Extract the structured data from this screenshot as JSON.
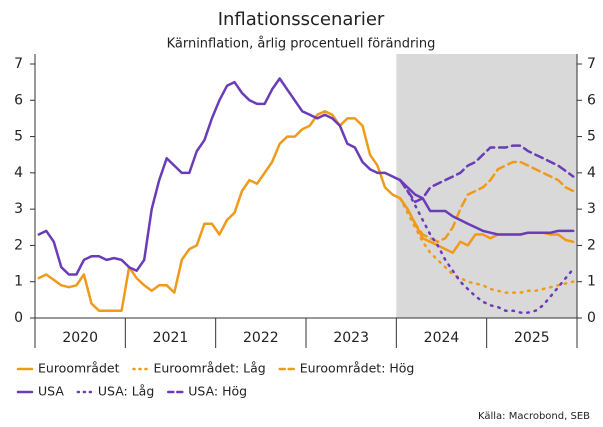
{
  "chart_data": {
    "type": "line",
    "title": "Inflationsscenarier",
    "subtitle": "Kärninflation, årlig procentuell förändring",
    "source": "Källa: Macrobond, SEB",
    "categories": [
      null,
      null,
      null,
      null,
      null,
      "2020",
      null,
      null,
      null,
      null,
      null,
      null,
      null,
      null,
      null,
      null,
      null,
      "2021",
      null,
      null,
      null,
      null,
      null,
      null,
      null,
      null,
      null,
      null,
      null,
      "2022",
      null,
      null,
      null,
      null,
      null,
      null,
      null,
      null,
      null,
      null,
      null,
      "2023",
      null,
      null,
      null,
      null,
      null,
      null,
      null,
      null,
      null,
      null,
      null,
      "2024",
      null,
      null,
      null,
      null,
      null,
      null,
      null,
      null,
      null,
      null,
      null,
      "2025",
      null,
      null,
      null,
      null,
      null,
      null
    ],
    "ylim": [
      0,
      7
    ],
    "yticks": [
      0,
      1,
      2,
      3,
      4,
      5,
      6,
      7
    ],
    "y2lim": [
      0,
      7
    ],
    "y2ticks": [
      0,
      1,
      2,
      3,
      4,
      5,
      6,
      7
    ],
    "series": [
      {
        "name": "Euroområdet",
        "color": "#f09a1a",
        "style": "solid",
        "values": [
          1.1,
          1.2,
          1.05,
          0.9,
          0.85,
          0.9,
          1.2,
          0.4,
          0.2,
          0.2,
          0.2,
          0.2,
          1.4,
          1.1,
          0.9,
          0.75,
          0.9,
          0.9,
          0.7,
          1.6,
          1.9,
          2.0,
          2.6,
          2.6,
          2.3,
          2.7,
          2.9,
          3.5,
          3.8,
          3.7,
          4.0,
          4.3,
          4.8,
          5.0,
          5.0,
          5.2,
          5.3,
          5.6,
          5.7,
          5.6,
          5.3,
          5.5,
          5.5,
          5.3,
          4.5,
          4.2,
          3.6,
          3.4,
          3.3,
          3.0,
          2.6,
          2.2,
          2.1,
          2.0,
          1.9,
          1.8,
          2.1,
          2.0,
          2.3,
          2.3,
          2.2,
          2.3,
          2.3,
          2.3,
          2.3,
          2.35,
          2.35,
          2.35,
          2.3,
          2.3,
          2.15,
          2.1
        ]
      },
      {
        "name": "Euroområdet: Låg",
        "color": "#f09a1a",
        "style": "dotted",
        "values": [
          null,
          null,
          null,
          null,
          null,
          null,
          null,
          null,
          null,
          null,
          null,
          null,
          null,
          null,
          null,
          null,
          null,
          null,
          null,
          null,
          null,
          null,
          null,
          null,
          null,
          null,
          null,
          null,
          null,
          null,
          null,
          null,
          null,
          null,
          null,
          null,
          null,
          null,
          null,
          null,
          null,
          null,
          null,
          null,
          null,
          null,
          null,
          null,
          3.3,
          2.9,
          2.5,
          2.1,
          1.8,
          1.6,
          1.4,
          1.2,
          1.1,
          1.0,
          0.95,
          0.9,
          0.8,
          0.75,
          0.7,
          0.7,
          0.7,
          0.75,
          0.75,
          0.8,
          0.85,
          0.9,
          0.95,
          1.0
        ]
      },
      {
        "name": "Euroområdet: Hög",
        "color": "#f09a1a",
        "style": "dashed",
        "values": [
          null,
          null,
          null,
          null,
          null,
          null,
          null,
          null,
          null,
          null,
          null,
          null,
          null,
          null,
          null,
          null,
          null,
          null,
          null,
          null,
          null,
          null,
          null,
          null,
          null,
          null,
          null,
          null,
          null,
          null,
          null,
          null,
          null,
          null,
          null,
          null,
          null,
          null,
          null,
          null,
          null,
          null,
          null,
          null,
          null,
          null,
          null,
          null,
          3.3,
          3.0,
          2.6,
          2.3,
          2.2,
          2.1,
          2.2,
          2.5,
          3.0,
          3.4,
          3.5,
          3.6,
          3.8,
          4.1,
          4.2,
          4.3,
          4.3,
          4.2,
          4.1,
          4.0,
          3.9,
          3.8,
          3.6,
          3.5
        ]
      },
      {
        "name": "USA",
        "color": "#6a3cb8",
        "style": "solid",
        "values": [
          2.3,
          2.4,
          2.1,
          1.4,
          1.2,
          1.2,
          1.6,
          1.7,
          1.7,
          1.6,
          1.65,
          1.6,
          1.4,
          1.3,
          1.6,
          3.0,
          3.8,
          4.4,
          4.2,
          4.0,
          4.0,
          4.6,
          4.9,
          5.5,
          6.0,
          6.4,
          6.5,
          6.2,
          6.0,
          5.9,
          5.9,
          6.3,
          6.6,
          6.3,
          6.0,
          5.7,
          5.6,
          5.5,
          5.6,
          5.5,
          5.3,
          4.8,
          4.7,
          4.3,
          4.1,
          4.0,
          4.0,
          3.9,
          3.8,
          3.6,
          3.4,
          3.3,
          2.95,
          2.95,
          2.95,
          2.8,
          2.7,
          2.6,
          2.5,
          2.4,
          2.35,
          2.3,
          2.3,
          2.3,
          2.3,
          2.35,
          2.35,
          2.35,
          2.35,
          2.4,
          2.4,
          2.4
        ]
      },
      {
        "name": "USA: Låg",
        "color": "#6a3cb8",
        "style": "dotted",
        "values": [
          null,
          null,
          null,
          null,
          null,
          null,
          null,
          null,
          null,
          null,
          null,
          null,
          null,
          null,
          null,
          null,
          null,
          null,
          null,
          null,
          null,
          null,
          null,
          null,
          null,
          null,
          null,
          null,
          null,
          null,
          null,
          null,
          null,
          null,
          null,
          null,
          null,
          null,
          null,
          null,
          null,
          null,
          null,
          null,
          null,
          null,
          null,
          null,
          3.8,
          3.5,
          3.1,
          2.7,
          2.3,
          2.0,
          1.6,
          1.3,
          1.0,
          0.8,
          0.6,
          0.45,
          0.35,
          0.3,
          0.2,
          0.2,
          0.15,
          0.15,
          0.2,
          0.35,
          0.6,
          0.85,
          1.1,
          1.35
        ]
      },
      {
        "name": "USA: Hög",
        "color": "#6a3cb8",
        "style": "dashed",
        "values": [
          null,
          null,
          null,
          null,
          null,
          null,
          null,
          null,
          null,
          null,
          null,
          null,
          null,
          null,
          null,
          null,
          null,
          null,
          null,
          null,
          null,
          null,
          null,
          null,
          null,
          null,
          null,
          null,
          null,
          null,
          null,
          null,
          null,
          null,
          null,
          null,
          null,
          null,
          null,
          null,
          null,
          null,
          null,
          null,
          null,
          null,
          null,
          null,
          3.8,
          3.5,
          3.2,
          3.3,
          3.6,
          3.7,
          3.8,
          3.9,
          4.0,
          4.2,
          4.3,
          4.5,
          4.7,
          4.7,
          4.7,
          4.75,
          4.75,
          4.6,
          4.5,
          4.4,
          4.3,
          4.2,
          4.05,
          3.9
        ]
      }
    ]
  }
}
